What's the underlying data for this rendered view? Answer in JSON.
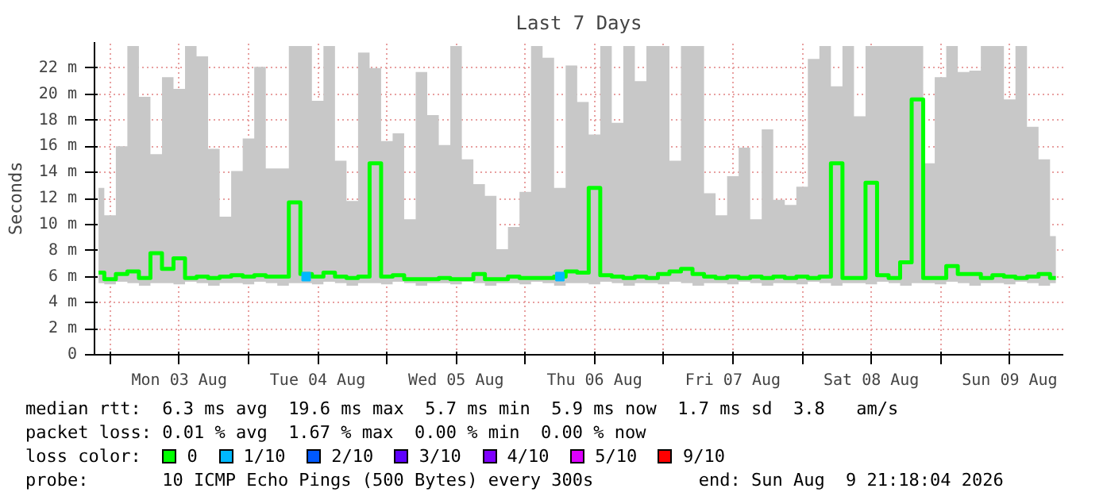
{
  "chart_data": {
    "type": "step",
    "title": "Last 7 Days",
    "ylabel": "Seconds",
    "xlim": [
      "2026-08-02T21:18",
      "2026-08-09T21:18"
    ],
    "xticks": [
      {
        "value": "2026-08-03T00:00",
        "label": null
      },
      {
        "value": "2026-08-03T12:00",
        "label": "Mon 03 Aug"
      },
      {
        "value": "2026-08-04T00:00",
        "label": null
      },
      {
        "value": "2026-08-04T12:00",
        "label": "Tue 04 Aug"
      },
      {
        "value": "2026-08-05T00:00",
        "label": null
      },
      {
        "value": "2026-08-05T12:00",
        "label": "Wed 05 Aug"
      },
      {
        "value": "2026-08-06T00:00",
        "label": null
      },
      {
        "value": "2026-08-06T12:00",
        "label": "Thu 06 Aug"
      },
      {
        "value": "2026-08-07T00:00",
        "label": null
      },
      {
        "value": "2026-08-07T12:00",
        "label": "Fri 07 Aug"
      },
      {
        "value": "2026-08-08T00:00",
        "label": null
      },
      {
        "value": "2026-08-08T12:00",
        "label": "Sat 08 Aug"
      },
      {
        "value": "2026-08-09T00:00",
        "label": null
      },
      {
        "value": "2026-08-09T12:00",
        "label": "Sun 09 Aug"
      }
    ],
    "ylim": [
      0,
      24
    ],
    "yticks": [
      0,
      {
        "value": 2,
        "label": "2 m"
      },
      {
        "value": 4,
        "label": "4 m"
      },
      {
        "value": 6,
        "label": "6 m"
      },
      {
        "value": 8,
        "label": "8 m"
      },
      {
        "value": 10,
        "label": "10 m"
      },
      {
        "value": 12,
        "label": "12 m"
      },
      {
        "value": 14,
        "label": "14 m"
      },
      {
        "value": 16,
        "label": "16 m"
      },
      {
        "value": 18,
        "label": "18 m"
      },
      {
        "value": 20,
        "label": "20 m"
      },
      {
        "value": 22,
        "label": "22 m"
      }
    ],
    "grid": true,
    "legend": "bottom",
    "legend_title": "loss color:",
    "line_style": "solid",
    "series": [
      {
        "name": "0",
        "color": "#00ff00",
        "x": [
          "2026-08-02T22:00",
          "2026-08-03T00:00",
          "2026-08-03T02:00",
          "2026-08-03T04:00",
          "2026-08-03T06:00",
          "2026-08-03T08:00",
          "2026-08-03T10:00",
          "2026-08-03T12:00",
          "2026-08-03T14:00",
          "2026-08-03T16:00",
          "2026-08-03T18:00",
          "2026-08-03T20:00",
          "2026-08-03T22:00",
          "2026-08-04T00:00",
          "2026-08-04T02:00",
          "2026-08-04T04:00",
          "2026-08-04T06:00",
          "2026-08-04T08:00",
          "2026-08-04T10:00",
          "2026-08-04T12:00",
          "2026-08-04T14:00",
          "2026-08-04T16:00",
          "2026-08-04T18:00",
          "2026-08-04T20:00",
          "2026-08-04T22:00",
          "2026-08-05T00:00",
          "2026-08-05T02:00",
          "2026-08-05T04:00",
          "2026-08-05T06:00",
          "2026-08-05T08:00",
          "2026-08-05T10:00",
          "2026-08-05T12:00",
          "2026-08-05T14:00",
          "2026-08-05T16:00",
          "2026-08-05T18:00",
          "2026-08-05T20:00",
          "2026-08-05T22:00",
          "2026-08-06T00:00",
          "2026-08-06T02:00",
          "2026-08-06T04:00",
          "2026-08-06T06:00",
          "2026-08-06T08:00",
          "2026-08-06T10:00",
          "2026-08-06T12:00",
          "2026-08-06T14:00",
          "2026-08-06T16:00",
          "2026-08-06T18:00",
          "2026-08-06T20:00",
          "2026-08-06T22:00",
          "2026-08-07T00:00",
          "2026-08-07T02:00",
          "2026-08-07T04:00",
          "2026-08-07T06:00",
          "2026-08-07T08:00",
          "2026-08-07T10:00",
          "2026-08-07T12:00",
          "2026-08-07T14:00",
          "2026-08-07T16:00",
          "2026-08-07T18:00",
          "2026-08-07T20:00",
          "2026-08-07T22:00",
          "2026-08-08T00:00",
          "2026-08-08T02:00",
          "2026-08-08T04:00",
          "2026-08-08T06:00",
          "2026-08-08T08:00",
          "2026-08-08T10:00",
          "2026-08-08T12:00",
          "2026-08-08T14:00",
          "2026-08-08T16:00",
          "2026-08-08T18:00",
          "2026-08-08T20:00",
          "2026-08-08T22:00",
          "2026-08-09T00:00",
          "2026-08-09T02:00",
          "2026-08-09T04:00",
          "2026-08-09T06:00",
          "2026-08-09T08:00",
          "2026-08-09T10:00",
          "2026-08-09T12:00",
          "2026-08-09T14:00",
          "2026-08-09T16:00",
          "2026-08-09T18:00",
          "2026-08-09T20:00"
        ],
        "values": [
          6.3,
          5.8,
          6.2,
          6.4,
          5.9,
          7.8,
          6.6,
          7.4,
          5.9,
          6.0,
          5.9,
          6.0,
          6.1,
          6.0,
          6.1,
          6.0,
          6.0,
          11.7,
          6.2,
          6.0,
          6.3,
          6.0,
          5.9,
          6.0,
          14.7,
          6.0,
          6.1,
          5.8,
          5.8,
          5.8,
          5.9,
          5.8,
          5.8,
          6.2,
          5.8,
          5.8,
          6.0,
          5.9,
          5.9,
          5.9,
          6.0,
          6.4,
          6.3,
          12.8,
          6.1,
          6.0,
          5.9,
          6.0,
          5.9,
          6.2,
          6.4,
          6.6,
          6.2,
          6.0,
          5.9,
          6.0,
          5.9,
          6.0,
          5.9,
          6.0,
          5.9,
          6.0,
          5.9,
          6.0,
          14.7,
          5.9,
          5.9,
          13.2,
          6.1,
          5.9,
          7.1,
          19.6,
          5.9,
          5.9,
          6.8,
          6.2,
          6.2,
          5.9,
          6.1,
          6.0,
          5.9,
          6.0,
          6.2,
          5.9
        ],
        "lower": [
          5.5,
          5.4,
          5.6,
          5.5,
          5.3,
          5.5,
          5.5,
          5.4,
          5.6,
          5.5,
          5.3,
          5.5,
          5.5,
          5.4,
          5.6,
          5.5,
          5.3,
          5.5,
          5.5,
          5.4,
          5.6,
          5.5,
          5.3,
          5.5,
          5.5,
          5.4,
          5.6,
          5.5,
          5.3,
          5.5,
          5.5,
          5.4,
          5.6,
          5.5,
          5.3,
          5.5,
          5.5,
          5.4,
          5.6,
          5.5,
          5.3,
          5.5,
          5.5,
          5.4,
          5.6,
          5.5,
          5.3,
          5.5,
          5.5,
          5.4,
          5.6,
          5.5,
          5.3,
          5.5,
          5.5,
          5.4,
          5.6,
          5.5,
          5.3,
          5.5,
          5.5,
          5.4,
          5.6,
          5.5,
          5.3,
          5.5,
          5.5,
          5.4,
          5.6,
          5.5,
          5.3,
          5.5,
          5.5,
          5.4,
          5.6,
          5.5,
          5.3,
          5.5,
          5.5,
          5.4,
          5.6,
          5.5,
          5.3,
          5.5
        ],
        "upper": [
          12.8,
          10.7,
          16.0,
          23.7,
          19.8,
          15.4,
          21.3,
          20.4,
          23.7,
          22.9,
          15.8,
          10.6,
          14.1,
          16.6,
          22.1,
          14.3,
          14.3,
          23.7,
          23.7,
          19.5,
          23.7,
          14.9,
          11.8,
          23.2,
          22.0,
          16.4,
          17.0,
          10.4,
          21.7,
          18.4,
          16.1,
          23.7,
          15.0,
          13.1,
          12.2,
          8.1,
          9.8,
          12.5,
          23.7,
          22.8,
          12.8,
          22.2,
          19.4,
          16.9,
          23.7,
          17.8,
          23.7,
          21.0,
          23.7,
          23.7,
          14.9,
          23.7,
          23.7,
          12.4,
          10.7,
          13.7,
          15.9,
          10.4,
          17.3,
          11.9,
          11.5,
          12.9,
          22.7,
          23.7,
          20.6,
          23.7,
          18.3,
          23.7,
          23.7,
          23.7,
          23.7,
          23.7,
          14.7,
          21.3,
          23.7,
          21.7,
          21.8,
          23.7,
          23.7,
          19.6,
          23.7,
          17.5,
          15.0,
          9.1
        ]
      },
      {
        "name": "1/10",
        "color": "#00b8ff",
        "type": "scatter",
        "marker": "square",
        "x": [
          "2026-08-04T10:00",
          "2026-08-06T06:00"
        ],
        "values": [
          6.0,
          6.0
        ]
      },
      {
        "name": "2/10",
        "color": "#0059ff",
        "type": "scatter",
        "marker": "square"
      },
      {
        "name": "3/10",
        "color": "#5e00ff",
        "type": "scatter",
        "marker": "square"
      },
      {
        "name": "4/10",
        "color": "#7e00ff",
        "type": "scatter",
        "marker": "square"
      },
      {
        "name": "5/10",
        "color": "#dd00ff",
        "type": "scatter",
        "marker": "square"
      },
      {
        "name": "9/10",
        "color": "#ff0000",
        "type": "scatter",
        "marker": "square"
      }
    ],
    "annotations": [
      "median rtt:  6.3 ms avg  19.6 ms max  5.7 ms min  5.9 ms now  1.7 ms sd  3.8   am/s",
      "packet loss: 0.01 % avg  1.67 % max  0.00 % min  0.00 % now",
      "probe:       10 ICMP Echo Pings (500 Bytes) every 300s          end: Sun Aug  9 21:18:04 2026"
    ]
  }
}
